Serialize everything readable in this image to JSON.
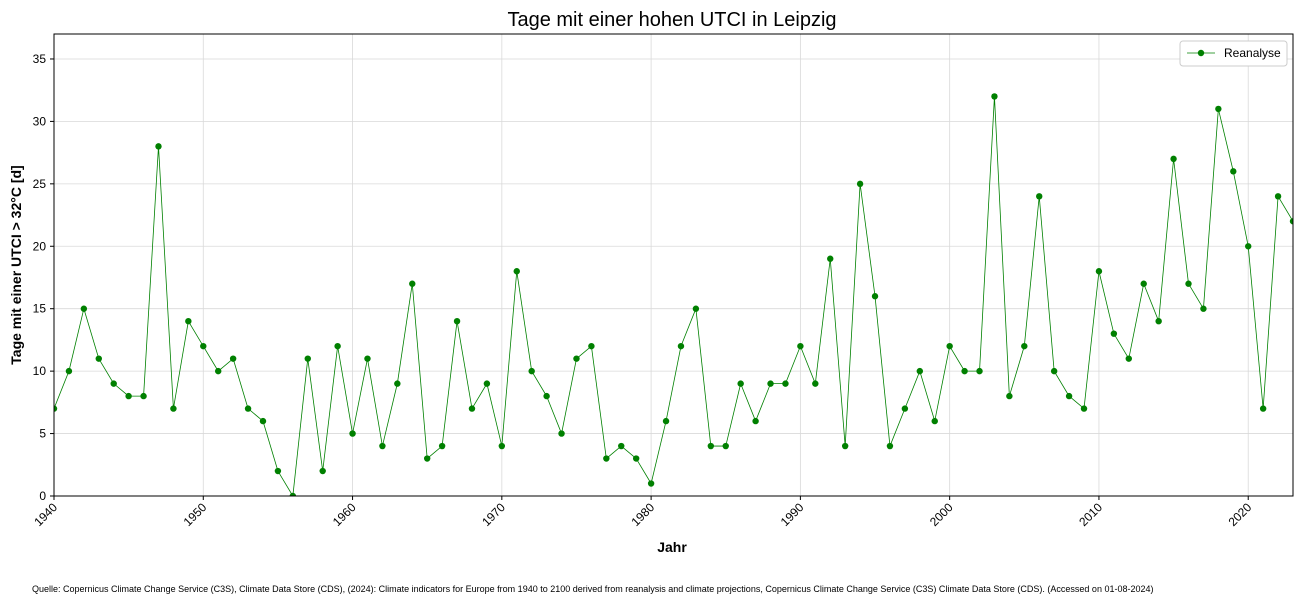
{
  "chart_data": {
    "type": "line",
    "title": "Tage mit einer hohen UTCI in Leipzig",
    "xlabel": "Jahr",
    "ylabel": "Tage mit einer UTCI > 32°C [d]",
    "xlim": [
      1940,
      2023
    ],
    "ylim": [
      0,
      37
    ],
    "xticks": [
      1940,
      1950,
      1960,
      1970,
      1980,
      1990,
      2000,
      2010,
      2020
    ],
    "yticks": [
      0,
      5,
      10,
      15,
      20,
      25,
      30,
      35
    ],
    "grid": true,
    "legend_position": "top-right",
    "x": [
      1940,
      1941,
      1942,
      1943,
      1944,
      1945,
      1946,
      1947,
      1948,
      1949,
      1950,
      1951,
      1952,
      1953,
      1954,
      1955,
      1956,
      1957,
      1958,
      1959,
      1960,
      1961,
      1962,
      1963,
      1964,
      1965,
      1966,
      1967,
      1968,
      1969,
      1970,
      1971,
      1972,
      1973,
      1974,
      1975,
      1976,
      1977,
      1978,
      1979,
      1980,
      1981,
      1982,
      1983,
      1984,
      1985,
      1986,
      1987,
      1988,
      1989,
      1990,
      1991,
      1992,
      1993,
      1994,
      1995,
      1996,
      1997,
      1998,
      1999,
      2000,
      2001,
      2002,
      2003,
      2004,
      2005,
      2006,
      2007,
      2008,
      2009,
      2010,
      2011,
      2012,
      2013,
      2014,
      2015,
      2016,
      2017,
      2018,
      2019,
      2020,
      2021,
      2022,
      2023
    ],
    "series": [
      {
        "name": "Reanalyse",
        "color": "#008000",
        "values": [
          7,
          10,
          15,
          11,
          9,
          8,
          8,
          28,
          7,
          14,
          12,
          10,
          11,
          7,
          6,
          2,
          0,
          11,
          2,
          12,
          5,
          11,
          4,
          9,
          17,
          3,
          4,
          14,
          7,
          9,
          4,
          18,
          10,
          8,
          5,
          11,
          12,
          3,
          4,
          3,
          1,
          6,
          12,
          15,
          4,
          4,
          9,
          6,
          9,
          9,
          12,
          9,
          19,
          4,
          25,
          16,
          4,
          7,
          10,
          6,
          12,
          10,
          10,
          32,
          8,
          12,
          24,
          10,
          8,
          7,
          18,
          13,
          11,
          17,
          14,
          27,
          17,
          15,
          31,
          26,
          20,
          7,
          24,
          22
        ]
      }
    ]
  },
  "source_text": "Quelle: Copernicus Climate Change Service (C3S), Climate Data Store (CDS), (2024): Climate indicators for Europe from 1940 to 2100 derived from reanalysis and climate projections, Copernicus Climate Change Service (C3S) Climate Data Store (CDS). (Accessed on 01-08-2024)"
}
